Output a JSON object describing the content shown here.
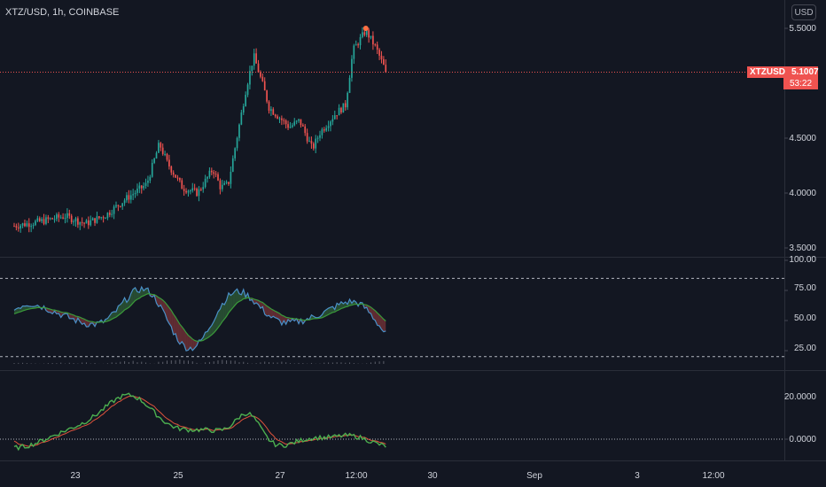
{
  "header": {
    "symbol_title": "XTZ/USD, 1h, COINBASE",
    "currency_button": "USD"
  },
  "price_badge": {
    "symbol": "XTZUSD",
    "price": "5.1007",
    "countdown": "53:22",
    "color": "#ef5350"
  },
  "colors": {
    "background": "#131722",
    "up": "#26a69a",
    "down": "#ef5350",
    "grid": "#2a2e39",
    "osc_line": "#4a90c8",
    "osc_signal": "#3a9a3a"
  },
  "chart_data": [
    {
      "type": "candlestick",
      "title": "XTZ/USD, 1h, COINBASE",
      "ylim": [
        3.4,
        5.6
      ],
      "y_ticks": [
        "5.5000",
        "4.5000",
        "4.0000",
        "3.5000"
      ],
      "last_price": 5.1007,
      "close_path": [
        [
          22.0,
          3.7
        ],
        [
          22.5,
          3.74
        ],
        [
          23.0,
          3.79
        ],
        [
          23.4,
          3.72
        ],
        [
          23.8,
          3.8
        ],
        [
          24.2,
          3.95
        ],
        [
          24.6,
          4.08
        ],
        [
          24.85,
          4.45
        ],
        [
          25.0,
          4.28
        ],
        [
          25.3,
          4.05
        ],
        [
          25.6,
          4.0
        ],
        [
          25.9,
          4.22
        ],
        [
          26.05,
          4.05
        ],
        [
          26.2,
          4.08
        ],
        [
          26.55,
          4.95
        ],
        [
          26.7,
          5.25
        ],
        [
          26.9,
          4.95
        ],
        [
          27.0,
          4.78
        ],
        [
          27.4,
          4.6
        ],
        [
          27.6,
          4.66
        ],
        [
          27.85,
          4.4
        ],
        [
          28.0,
          4.55
        ],
        [
          28.3,
          4.72
        ],
        [
          28.5,
          4.8
        ],
        [
          28.65,
          5.3
        ],
        [
          28.9,
          5.48
        ],
        [
          29.1,
          5.32
        ],
        [
          29.3,
          5.1
        ]
      ]
    },
    {
      "type": "line",
      "ylim": [
        10,
        100
      ],
      "y_ticks": [
        "100.00",
        "75.00",
        "50.00",
        "25.00"
      ],
      "levels": [
        85,
        20
      ],
      "series": []
    },
    {
      "type": "line",
      "ylim": [
        -4,
        30
      ],
      "y_ticks": [
        "20.0000",
        "0.0000"
      ],
      "series": []
    }
  ],
  "x_axis": {
    "labels": [
      "23",
      "25",
      "27",
      "12:00",
      "30",
      "Sep",
      "3",
      "12:00"
    ]
  }
}
